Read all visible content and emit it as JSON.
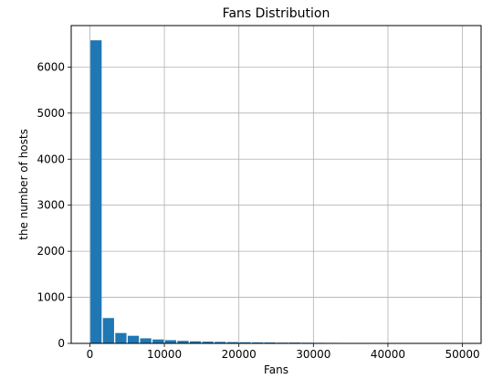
{
  "chart_data": {
    "type": "bar",
    "title": "Fans Distribution",
    "xlabel": "Fans",
    "ylabel": "the number of hosts",
    "xlim": [
      -2500,
      52500
    ],
    "ylim": [
      0,
      6900
    ],
    "grid": true,
    "bar_color": "#1f77b4",
    "bin_width": 1667,
    "xticks": [
      0,
      10000,
      20000,
      30000,
      40000,
      50000
    ],
    "yticks": [
      0,
      1000,
      2000,
      3000,
      4000,
      5000,
      6000
    ],
    "bins": [
      {
        "x0": 0,
        "x1": 1667,
        "value": 6580
      },
      {
        "x0": 1667,
        "x1": 3333,
        "value": 550
      },
      {
        "x0": 3333,
        "x1": 5000,
        "value": 225
      },
      {
        "x0": 5000,
        "x1": 6667,
        "value": 165
      },
      {
        "x0": 6667,
        "x1": 8333,
        "value": 110
      },
      {
        "x0": 8333,
        "x1": 10000,
        "value": 85
      },
      {
        "x0": 10000,
        "x1": 11667,
        "value": 70
      },
      {
        "x0": 11667,
        "x1": 13333,
        "value": 55
      },
      {
        "x0": 13333,
        "x1": 15000,
        "value": 45
      },
      {
        "x0": 15000,
        "x1": 16667,
        "value": 38
      },
      {
        "x0": 16667,
        "x1": 18333,
        "value": 33
      },
      {
        "x0": 18333,
        "x1": 20000,
        "value": 28
      },
      {
        "x0": 20000,
        "x1": 21667,
        "value": 25
      },
      {
        "x0": 21667,
        "x1": 23333,
        "value": 22
      },
      {
        "x0": 23333,
        "x1": 25000,
        "value": 20
      },
      {
        "x0": 25000,
        "x1": 26667,
        "value": 16
      },
      {
        "x0": 26667,
        "x1": 28333,
        "value": 18
      },
      {
        "x0": 28333,
        "x1": 30000,
        "value": 14
      },
      {
        "x0": 30000,
        "x1": 31667,
        "value": 12
      },
      {
        "x0": 31667,
        "x1": 33333,
        "value": 11
      },
      {
        "x0": 33333,
        "x1": 35000,
        "value": 10
      },
      {
        "x0": 35000,
        "x1": 36667,
        "value": 9
      },
      {
        "x0": 36667,
        "x1": 38333,
        "value": 8
      },
      {
        "x0": 38333,
        "x1": 40000,
        "value": 8
      },
      {
        "x0": 40000,
        "x1": 41667,
        "value": 7
      },
      {
        "x0": 41667,
        "x1": 43333,
        "value": 7
      },
      {
        "x0": 43333,
        "x1": 45000,
        "value": 6
      },
      {
        "x0": 45000,
        "x1": 46667,
        "value": 6
      },
      {
        "x0": 46667,
        "x1": 48333,
        "value": 5
      },
      {
        "x0": 48333,
        "x1": 50000,
        "value": 5
      }
    ]
  }
}
